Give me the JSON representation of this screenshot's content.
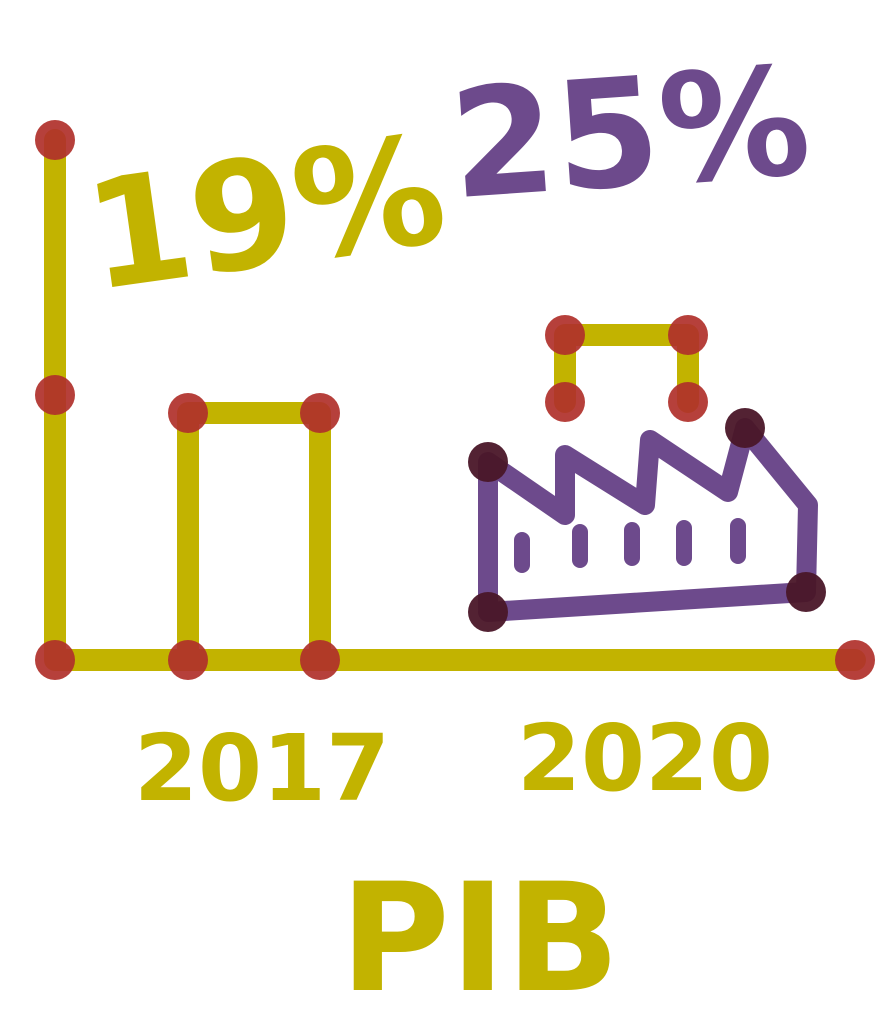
{
  "chart_data": {
    "type": "bar",
    "title": "PIB",
    "categories": [
      "2017",
      "2020"
    ],
    "values": [
      19,
      25
    ],
    "value_labels": [
      "19%",
      "25%"
    ],
    "xlabel": "PIB",
    "ylabel": "",
    "ylim": [
      0,
      40
    ],
    "grid": false,
    "legend": "none",
    "icons": [
      "factory-icon"
    ],
    "colors": {
      "axis": "#c2b300",
      "bar_2017": "#c2b300",
      "bar_2020": "#c2b300",
      "label_2017": "#c2b300",
      "label_2020": "#6d4a8c",
      "factory": "#6d4a8c",
      "dot": "#b0302a",
      "dot_dark": "#4a1628"
    }
  }
}
